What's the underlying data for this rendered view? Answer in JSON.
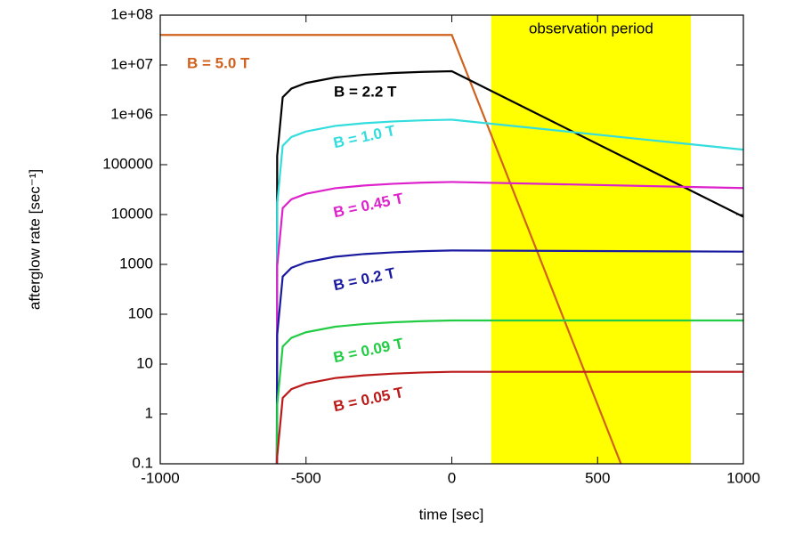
{
  "chart_data": {
    "type": "line",
    "y_scale": "log",
    "xlabel": "time [sec]",
    "ylabel": "afterglow rate [sec⁻¹]",
    "xlim": [
      -1000,
      1000
    ],
    "xticks": [
      -1000,
      -500,
      0,
      500,
      1000
    ],
    "ylim": [
      0.1,
      100000000
    ],
    "yticks": [
      {
        "value": 100000000,
        "label": "1e+08"
      },
      {
        "value": 10000000,
        "label": "1e+07"
      },
      {
        "value": 1000000,
        "label": "1e+06"
      },
      100000,
      10000,
      1000,
      100,
      10,
      1,
      0.1
    ],
    "shaded_region": {
      "xlim": [
        135,
        820
      ],
      "label": "observation period",
      "color": "#ffff00"
    },
    "series": [
      {
        "name": "B = 5.0 T",
        "color": "#d0621e",
        "x": [
          -1000,
          0,
          580
        ],
        "values": [
          40000000,
          40000000,
          0.1
        ]
      },
      {
        "name": "B = 2.2 T",
        "color": "#000000",
        "x": [
          -600,
          -599,
          -580,
          -550,
          -500,
          -400,
          -300,
          -200,
          -100,
          0,
          1000
        ],
        "values": [
          0.1,
          150000,
          2250000,
          3375000,
          4350000,
          5625000,
          6375000,
          6900000,
          7275000,
          7500000,
          9000
        ]
      },
      {
        "name": "B = 1.0 T",
        "color": "#33dddd",
        "x": [
          -600,
          -599,
          -580,
          -550,
          -500,
          -400,
          -300,
          -200,
          -100,
          0,
          1000
        ],
        "values": [
          0.1,
          16000,
          240000,
          360000,
          464000,
          600000,
          680000,
          736000,
          776000,
          800000,
          200000
        ]
      },
      {
        "name": "B = 0.45 T",
        "color": "#dd22cc",
        "x": [
          -600,
          -599,
          -580,
          -550,
          -500,
          -400,
          -300,
          -200,
          -100,
          0,
          1000
        ],
        "values": [
          0.1,
          900,
          13500,
          20250,
          26100,
          33750,
          38250,
          41400,
          43650,
          45000,
          34000
        ]
      },
      {
        "name": "B = 0.2 T",
        "color": "#1a1aa0",
        "x": [
          -600,
          -599,
          -580,
          -550,
          -500,
          -400,
          -300,
          -200,
          -100,
          0,
          1000
        ],
        "values": [
          0.1,
          38,
          570,
          855,
          1102,
          1425,
          1615,
          1748,
          1843,
          1900,
          1800
        ]
      },
      {
        "name": "B = 0.09 T",
        "color": "#22cc44",
        "x": [
          -600,
          -599,
          -580,
          -550,
          -500,
          -400,
          -300,
          -200,
          -100,
          0,
          1000
        ],
        "values": [
          0.1,
          1.5,
          22.5,
          33.75,
          43.5,
          56.25,
          63.75,
          69,
          72.75,
          75,
          75
        ]
      },
      {
        "name": "B = 0.05 T",
        "color": "#bb1a1a",
        "x": [
          -600,
          -599,
          -580,
          -550,
          -500,
          -400,
          -300,
          -200,
          -100,
          0,
          1000
        ],
        "values": [
          0.1,
          0.14,
          2.1,
          3.15,
          4.06,
          5.25,
          5.95,
          6.44,
          6.79,
          7,
          7
        ]
      }
    ]
  }
}
